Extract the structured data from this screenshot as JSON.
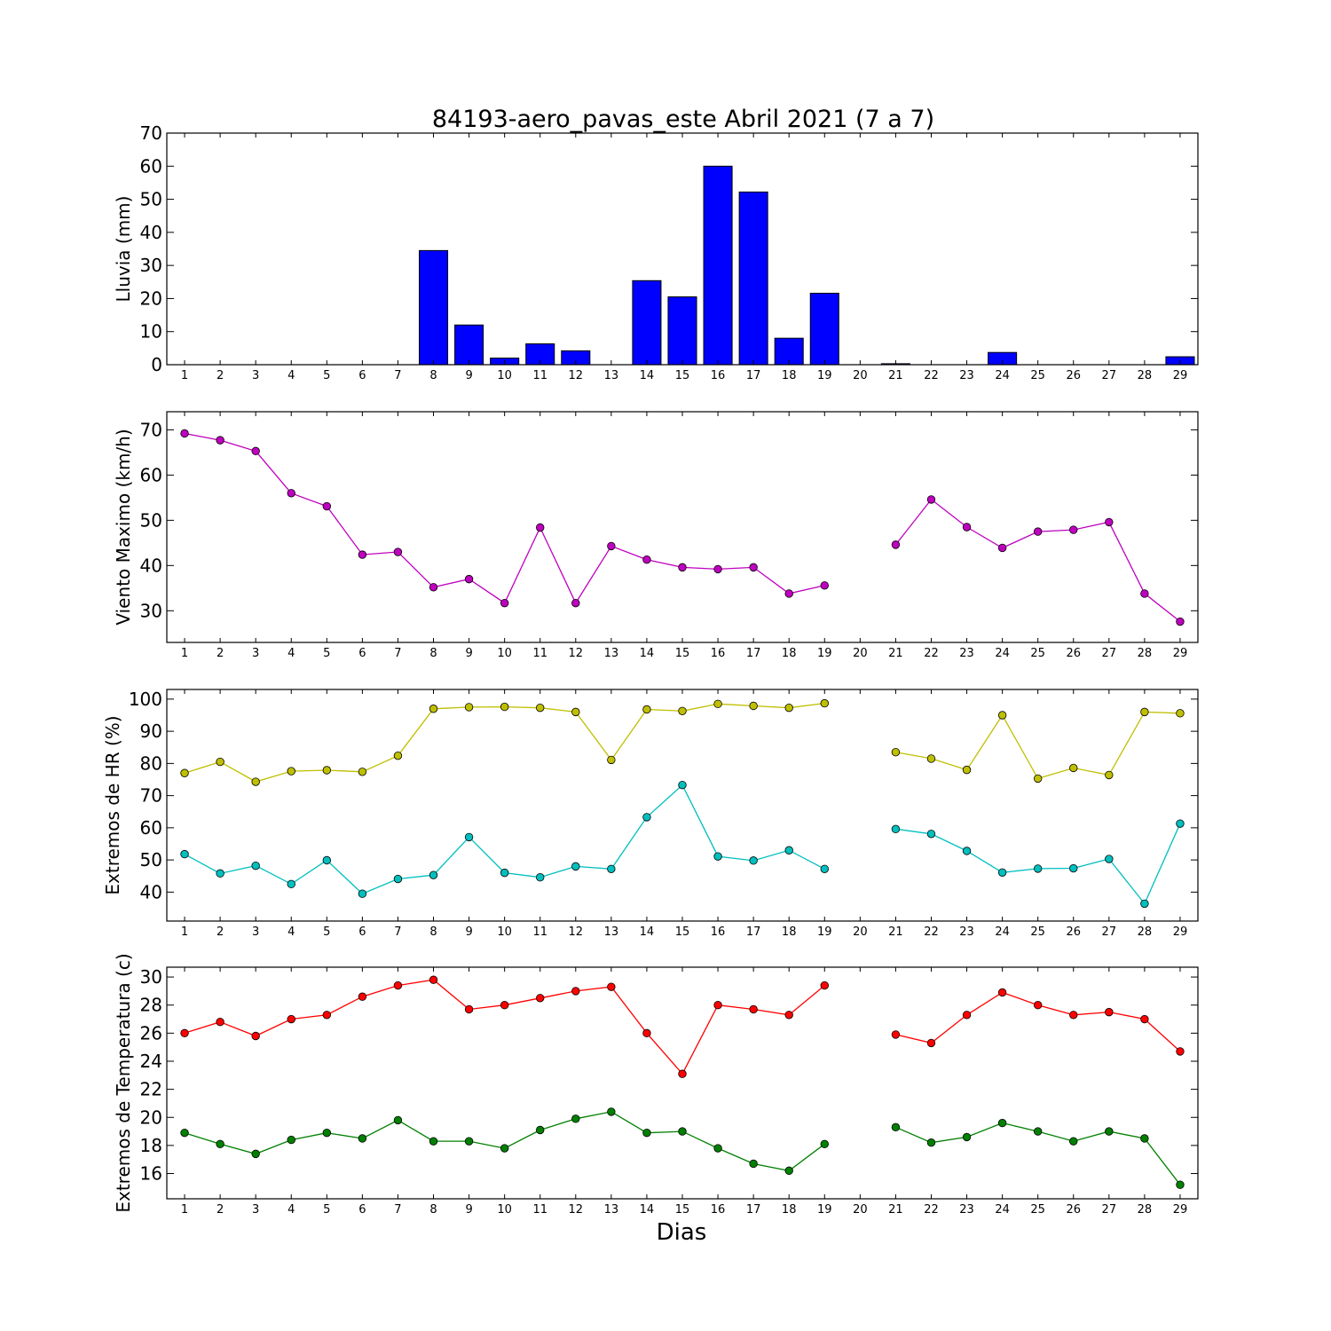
{
  "title": "84193-aero_pavas_este Abril 2021  (7 a 7)",
  "xlabel": "Dias",
  "chart_data": [
    {
      "type": "bar",
      "ylabel": "Lluvia (mm)",
      "ylim": [
        0,
        70
      ],
      "yticks": [
        0,
        10,
        20,
        30,
        40,
        50,
        60,
        70
      ],
      "x": [
        1,
        2,
        3,
        4,
        5,
        6,
        7,
        8,
        9,
        10,
        11,
        12,
        13,
        14,
        15,
        16,
        17,
        18,
        19,
        20,
        21,
        22,
        23,
        24,
        25,
        26,
        27,
        28,
        29
      ],
      "xticks": [
        1,
        2,
        3,
        4,
        5,
        6,
        7,
        8,
        9,
        10,
        11,
        12,
        13,
        14,
        15,
        16,
        17,
        18,
        19,
        20,
        21,
        22,
        23,
        24,
        25,
        26,
        27,
        28,
        29
      ],
      "series": [
        {
          "values": [
            0,
            0,
            0,
            0,
            0,
            0,
            0,
            34.5,
            12,
            2,
            6.3,
            4.2,
            0,
            25.4,
            20.5,
            60,
            52.2,
            8,
            21.6,
            null,
            0.3,
            0,
            0,
            3.7,
            0,
            0,
            0,
            0,
            2.4
          ],
          "color": "#0000ff"
        }
      ],
      "grid": false
    },
    {
      "type": "line",
      "ylabel": "Viento Maximo (km/h)",
      "ylim": [
        23,
        74
      ],
      "yticks": [
        30,
        40,
        50,
        60,
        70
      ],
      "x": [
        1,
        2,
        3,
        4,
        5,
        6,
        7,
        8,
        9,
        10,
        11,
        12,
        13,
        14,
        15,
        16,
        17,
        18,
        19,
        20,
        21,
        22,
        23,
        24,
        25,
        26,
        27,
        28,
        29
      ],
      "xticks": [
        1,
        2,
        3,
        4,
        5,
        6,
        7,
        8,
        9,
        10,
        11,
        12,
        13,
        14,
        15,
        16,
        17,
        18,
        19,
        20,
        21,
        22,
        23,
        24,
        25,
        26,
        27,
        28,
        29
      ],
      "series": [
        {
          "values": [
            69.2,
            67.7,
            65.3,
            56,
            53.1,
            42.4,
            43,
            35.2,
            37,
            31.7,
            48.4,
            31.7,
            44.3,
            41.3,
            39.6,
            39.2,
            39.6,
            33.8,
            35.6,
            null,
            44.6,
            54.6,
            48.5,
            43.9,
            47.5,
            47.9,
            49.6,
            33.8,
            27.6
          ],
          "color": "#bf00bf"
        }
      ],
      "grid": false
    },
    {
      "type": "line",
      "ylabel": "Extremos de HR (%)",
      "ylim": [
        31,
        103
      ],
      "yticks": [
        40,
        50,
        60,
        70,
        80,
        90,
        100
      ],
      "x": [
        1,
        2,
        3,
        4,
        5,
        6,
        7,
        8,
        9,
        10,
        11,
        12,
        13,
        14,
        15,
        16,
        17,
        18,
        19,
        20,
        21,
        22,
        23,
        24,
        25,
        26,
        27,
        28,
        29
      ],
      "xticks": [
        1,
        2,
        3,
        4,
        5,
        6,
        7,
        8,
        9,
        10,
        11,
        12,
        13,
        14,
        15,
        16,
        17,
        18,
        19,
        20,
        21,
        22,
        23,
        24,
        25,
        26,
        27,
        28,
        29
      ],
      "series": [
        {
          "values": [
            77,
            80.5,
            74.3,
            77.6,
            77.9,
            77.4,
            82.4,
            97,
            97.5,
            97.6,
            97.3,
            96,
            81.1,
            96.8,
            96.3,
            98.5,
            97.9,
            97.3,
            98.7,
            null,
            83.5,
            81.5,
            78,
            95,
            75.3,
            78.6,
            76.4,
            96,
            95.6
          ],
          "color": "#bfbf00"
        },
        {
          "values": [
            51.8,
            45.8,
            48.2,
            42.5,
            49.9,
            39.5,
            44.1,
            45.3,
            57.1,
            46,
            44.6,
            48,
            47.2,
            63.3,
            73.3,
            51.1,
            49.8,
            53,
            47.2,
            null,
            59.6,
            58.1,
            52.8,
            46.1,
            47.3,
            47.4,
            50.3,
            36.4,
            61.3
          ],
          "color": "#00bfbf"
        }
      ],
      "grid": false
    },
    {
      "type": "line",
      "ylabel": "Extremos de Temperatura (c)",
      "ylim": [
        14.2,
        30.7
      ],
      "yticks": [
        16,
        18,
        20,
        22,
        24,
        26,
        28,
        30
      ],
      "x": [
        1,
        2,
        3,
        4,
        5,
        6,
        7,
        8,
        9,
        10,
        11,
        12,
        13,
        14,
        15,
        16,
        17,
        18,
        19,
        20,
        21,
        22,
        23,
        24,
        25,
        26,
        27,
        28,
        29
      ],
      "xticks": [
        1,
        2,
        3,
        4,
        5,
        6,
        7,
        8,
        9,
        10,
        11,
        12,
        13,
        14,
        15,
        16,
        17,
        18,
        19,
        20,
        21,
        22,
        23,
        24,
        25,
        26,
        27,
        28,
        29
      ],
      "series": [
        {
          "values": [
            26,
            26.8,
            25.8,
            27,
            27.3,
            28.6,
            29.4,
            29.8,
            27.7,
            28,
            28.5,
            29,
            29.3,
            26,
            23.1,
            28,
            27.7,
            27.3,
            29.4,
            null,
            25.9,
            25.3,
            27.3,
            28.9,
            28,
            27.3,
            27.5,
            27,
            24.7
          ],
          "color": "#ff0000"
        },
        {
          "values": [
            18.9,
            18.1,
            17.4,
            18.4,
            18.9,
            18.5,
            19.8,
            18.3,
            18.3,
            17.8,
            19.1,
            19.9,
            20.4,
            18.9,
            19,
            17.8,
            16.7,
            16.2,
            18.1,
            null,
            19.3,
            18.2,
            18.6,
            19.6,
            19,
            18.3,
            19,
            18.5,
            15.2
          ],
          "color": "#008000"
        }
      ],
      "grid": false
    }
  ]
}
